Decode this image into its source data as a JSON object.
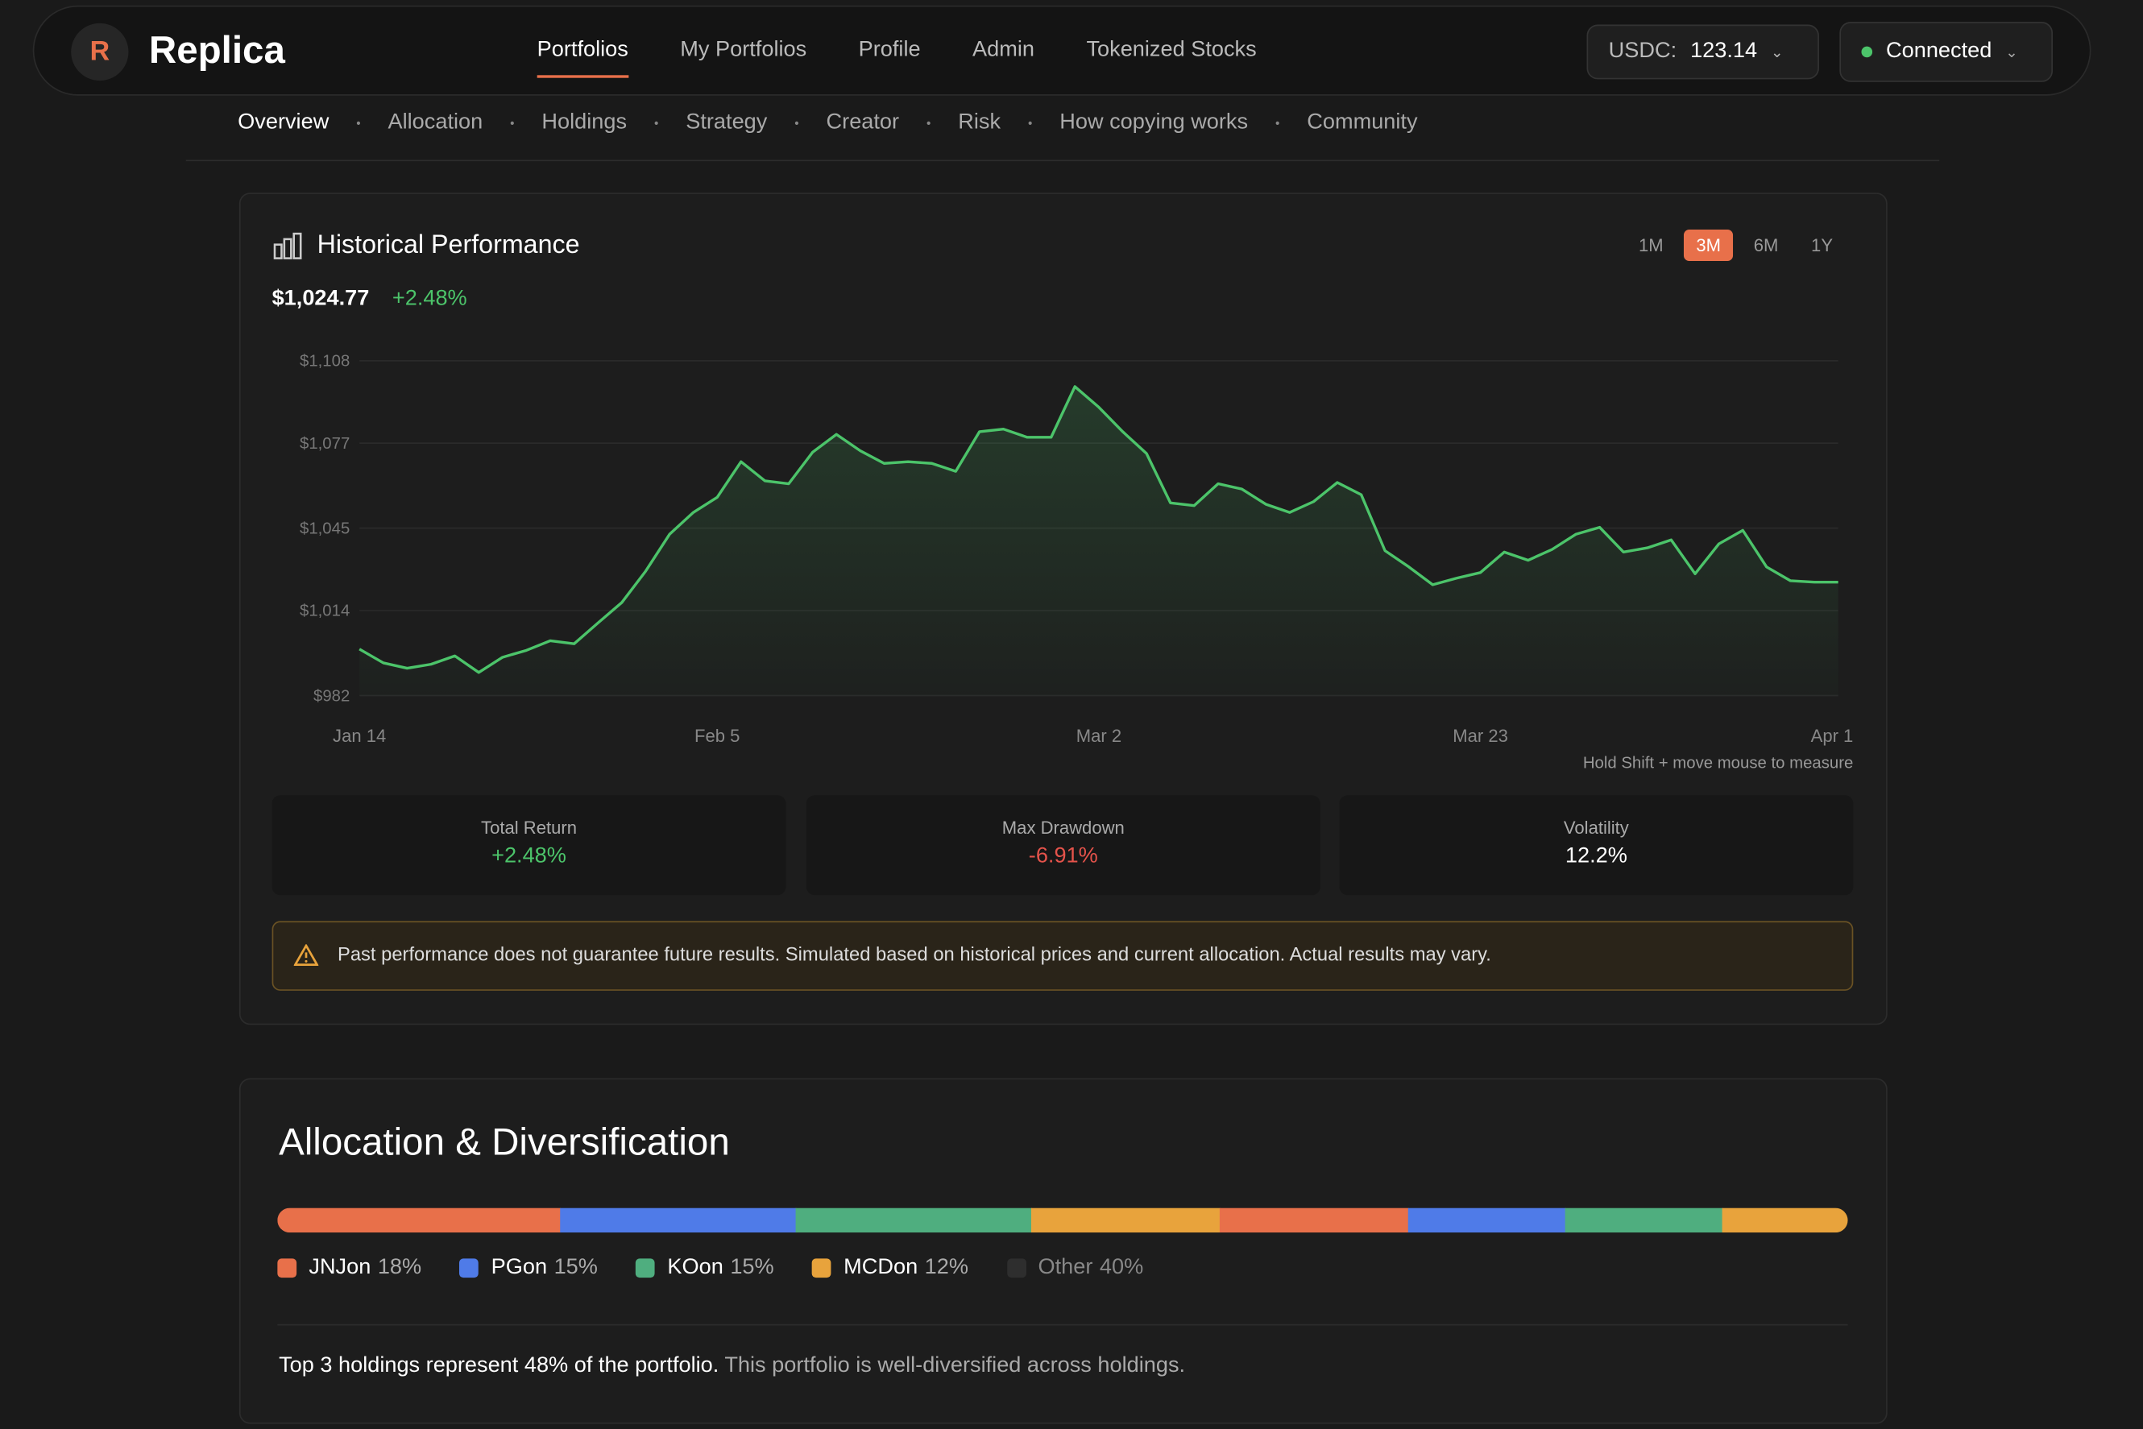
{
  "nav": {
    "brand": "Replica",
    "links": [
      "Portfolios",
      "My Portfolios",
      "Profile",
      "Admin",
      "Tokenized Stocks"
    ],
    "balance_label": "USDC:",
    "balance": "123.14",
    "status": "Connected"
  },
  "tabs": [
    "Overview",
    "Allocation",
    "Holdings",
    "Strategy",
    "Creator",
    "Risk",
    "How copying works",
    "Community"
  ],
  "performance": {
    "title": "Historical Performance",
    "ranges": [
      "1M",
      "3M",
      "6M",
      "1Y"
    ],
    "value": "$1,024.77",
    "change": "+2.48%",
    "hint": "Hold Shift + move mouse to measure",
    "stats": [
      {
        "label": "Total Return",
        "value": "+2.48%"
      },
      {
        "label": "Max Drawdown",
        "value": "-6.91%"
      },
      {
        "label": "Volatility",
        "value": "12.2%"
      }
    ],
    "disclaimer": "Past performance does not guarantee future results. Simulated based on historical prices and current allocation. Actual results may vary."
  },
  "chart_data": {
    "type": "line",
    "color": "#4cc46a",
    "grid": true,
    "categories": [
      "Jan 14",
      null,
      null,
      null,
      null,
      null,
      null,
      null,
      null,
      null,
      null,
      null,
      null,
      null,
      null,
      "Feb 5",
      null,
      null,
      null,
      null,
      null,
      null,
      null,
      null,
      null,
      null,
      null,
      null,
      null,
      null,
      null,
      "Mar 2",
      null,
      null,
      null,
      null,
      null,
      null,
      null,
      null,
      null,
      null,
      null,
      null,
      null,
      null,
      null,
      "Mar 23",
      null,
      null,
      null,
      null,
      null,
      null,
      null,
      null,
      null,
      null,
      null,
      null,
      null,
      null,
      "Apr 1"
    ],
    "values": [
      999.5,
      994.3,
      992.3,
      993.8,
      996.9,
      990.7,
      996.4,
      999.0,
      1002.6,
      1001.5,
      1009.3,
      1017.0,
      1028.8,
      1042.7,
      1050.9,
      1056.6,
      1070.0,
      1062.8,
      1061.7,
      1073.6,
      1080.3,
      1074.1,
      1069.4,
      1070.0,
      1069.4,
      1066.4,
      1081.3,
      1082.3,
      1079.2,
      1079.2,
      1098.3,
      1090.5,
      1081.3,
      1073.1,
      1054.5,
      1053.5,
      1061.7,
      1059.7,
      1054.0,
      1050.9,
      1055.0,
      1062.2,
      1057.6,
      1036.5,
      1030.4,
      1023.7,
      1026.2,
      1028.3,
      1036.0,
      1032.9,
      1037.0,
      1042.7,
      1045.3,
      1036.0,
      1037.6,
      1040.6,
      1027.8,
      1039.1,
      1044.2,
      1030.4,
      1025.2,
      1024.7,
      1024.7
    ],
    "ylim": [
      982,
      1108
    ],
    "yticks": [
      {
        "value": 982,
        "label": "$982"
      },
      {
        "value": 1014,
        "label": "$1,014"
      },
      {
        "value": 1045,
        "label": "$1,045"
      },
      {
        "value": 1077,
        "label": "$1,077"
      },
      {
        "value": 1108,
        "label": "$1,108"
      }
    ]
  },
  "allocation": {
    "title": "Allocation & Diversification",
    "legend": {
      "names": [
        "JNJon",
        "PGon",
        "KOon",
        "MCDon",
        "Other"
      ],
      "values": [
        18,
        15,
        15,
        12,
        40
      ],
      "value_labels": [
        "18%",
        "15%",
        "15%",
        "12%",
        "40%"
      ],
      "colors": [
        "#e8704a",
        "#4f7be8",
        "#4fae7f",
        "#e8a33c",
        "#2e2e2e"
      ]
    },
    "other_segments": {
      "values": [
        12,
        10,
        10,
        8
      ],
      "colors": [
        "#e8704a",
        "#4f7be8",
        "#4fae7f",
        "#e8a33c"
      ]
    },
    "summary_bold": "Top 3 holdings represent 48% of the portfolio.",
    "summary": "This portfolio is well-diversified across holdings."
  }
}
